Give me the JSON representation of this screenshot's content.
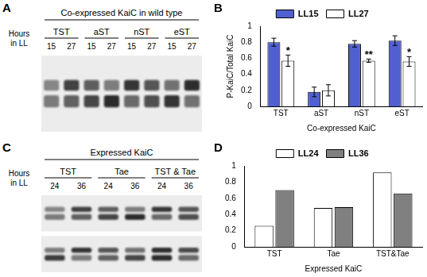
{
  "blots": [
    {
      "panel_label": "A",
      "title": "Co-expressed KaiC in wild type",
      "row_label": "Hours in LL",
      "groups": [
        "TST",
        "aST",
        "nST",
        "eST"
      ],
      "hours": [
        15,
        27
      ],
      "strips": 1
    },
    {
      "panel_label": "C",
      "title": "Expressed KaiC",
      "row_label": "Hours in LL",
      "groups": [
        "TST",
        "Tae",
        "TST & Tae"
      ],
      "hours": [
        24,
        36
      ],
      "strips": 2
    }
  ],
  "chart_data": [
    {
      "panel_label": "B",
      "type": "bar",
      "y_label": "P-KaiC/Total KaiC",
      "x_label": "Co-expressed KaiC",
      "categories": [
        "TST",
        "aST",
        "nST",
        "eST"
      ],
      "series": [
        {
          "name": "LL15",
          "color": "#5060d0",
          "values": [
            0.8,
            0.18,
            0.78,
            0.82
          ],
          "errors": [
            0.05,
            0.06,
            0.04,
            0.06
          ]
        },
        {
          "name": "LL27",
          "color": "#ffffff",
          "values": [
            0.57,
            0.2,
            0.57,
            0.56
          ],
          "errors": [
            0.07,
            0.07,
            0.02,
            0.06
          ]
        }
      ],
      "ylim": [
        0,
        1
      ],
      "yticks": [
        0,
        0.2,
        0.4,
        0.6,
        0.8,
        1
      ],
      "grid": false,
      "legend": "top",
      "annotations": [
        {
          "category": "TST",
          "series": "LL27",
          "text": "*"
        },
        {
          "category": "nST",
          "series": "LL27",
          "text": "**"
        },
        {
          "category": "eST",
          "series": "LL27",
          "text": "*"
        }
      ]
    },
    {
      "panel_label": "D",
      "type": "bar",
      "x_label": "Expressed KaiC",
      "categories": [
        "TST",
        "Tae",
        "TST&Tae"
      ],
      "series": [
        {
          "name": "LL24",
          "color": "#ffffff",
          "values": [
            0.26,
            0.48,
            0.92
          ]
        },
        {
          "name": "LL36",
          "color": "#808080",
          "values": [
            0.7,
            0.49,
            0.66
          ]
        }
      ],
      "ylim": [
        0,
        1
      ],
      "yticks": [
        0,
        0.2,
        0.4,
        0.6,
        0.8,
        1
      ],
      "grid": false,
      "legend": "top"
    }
  ]
}
